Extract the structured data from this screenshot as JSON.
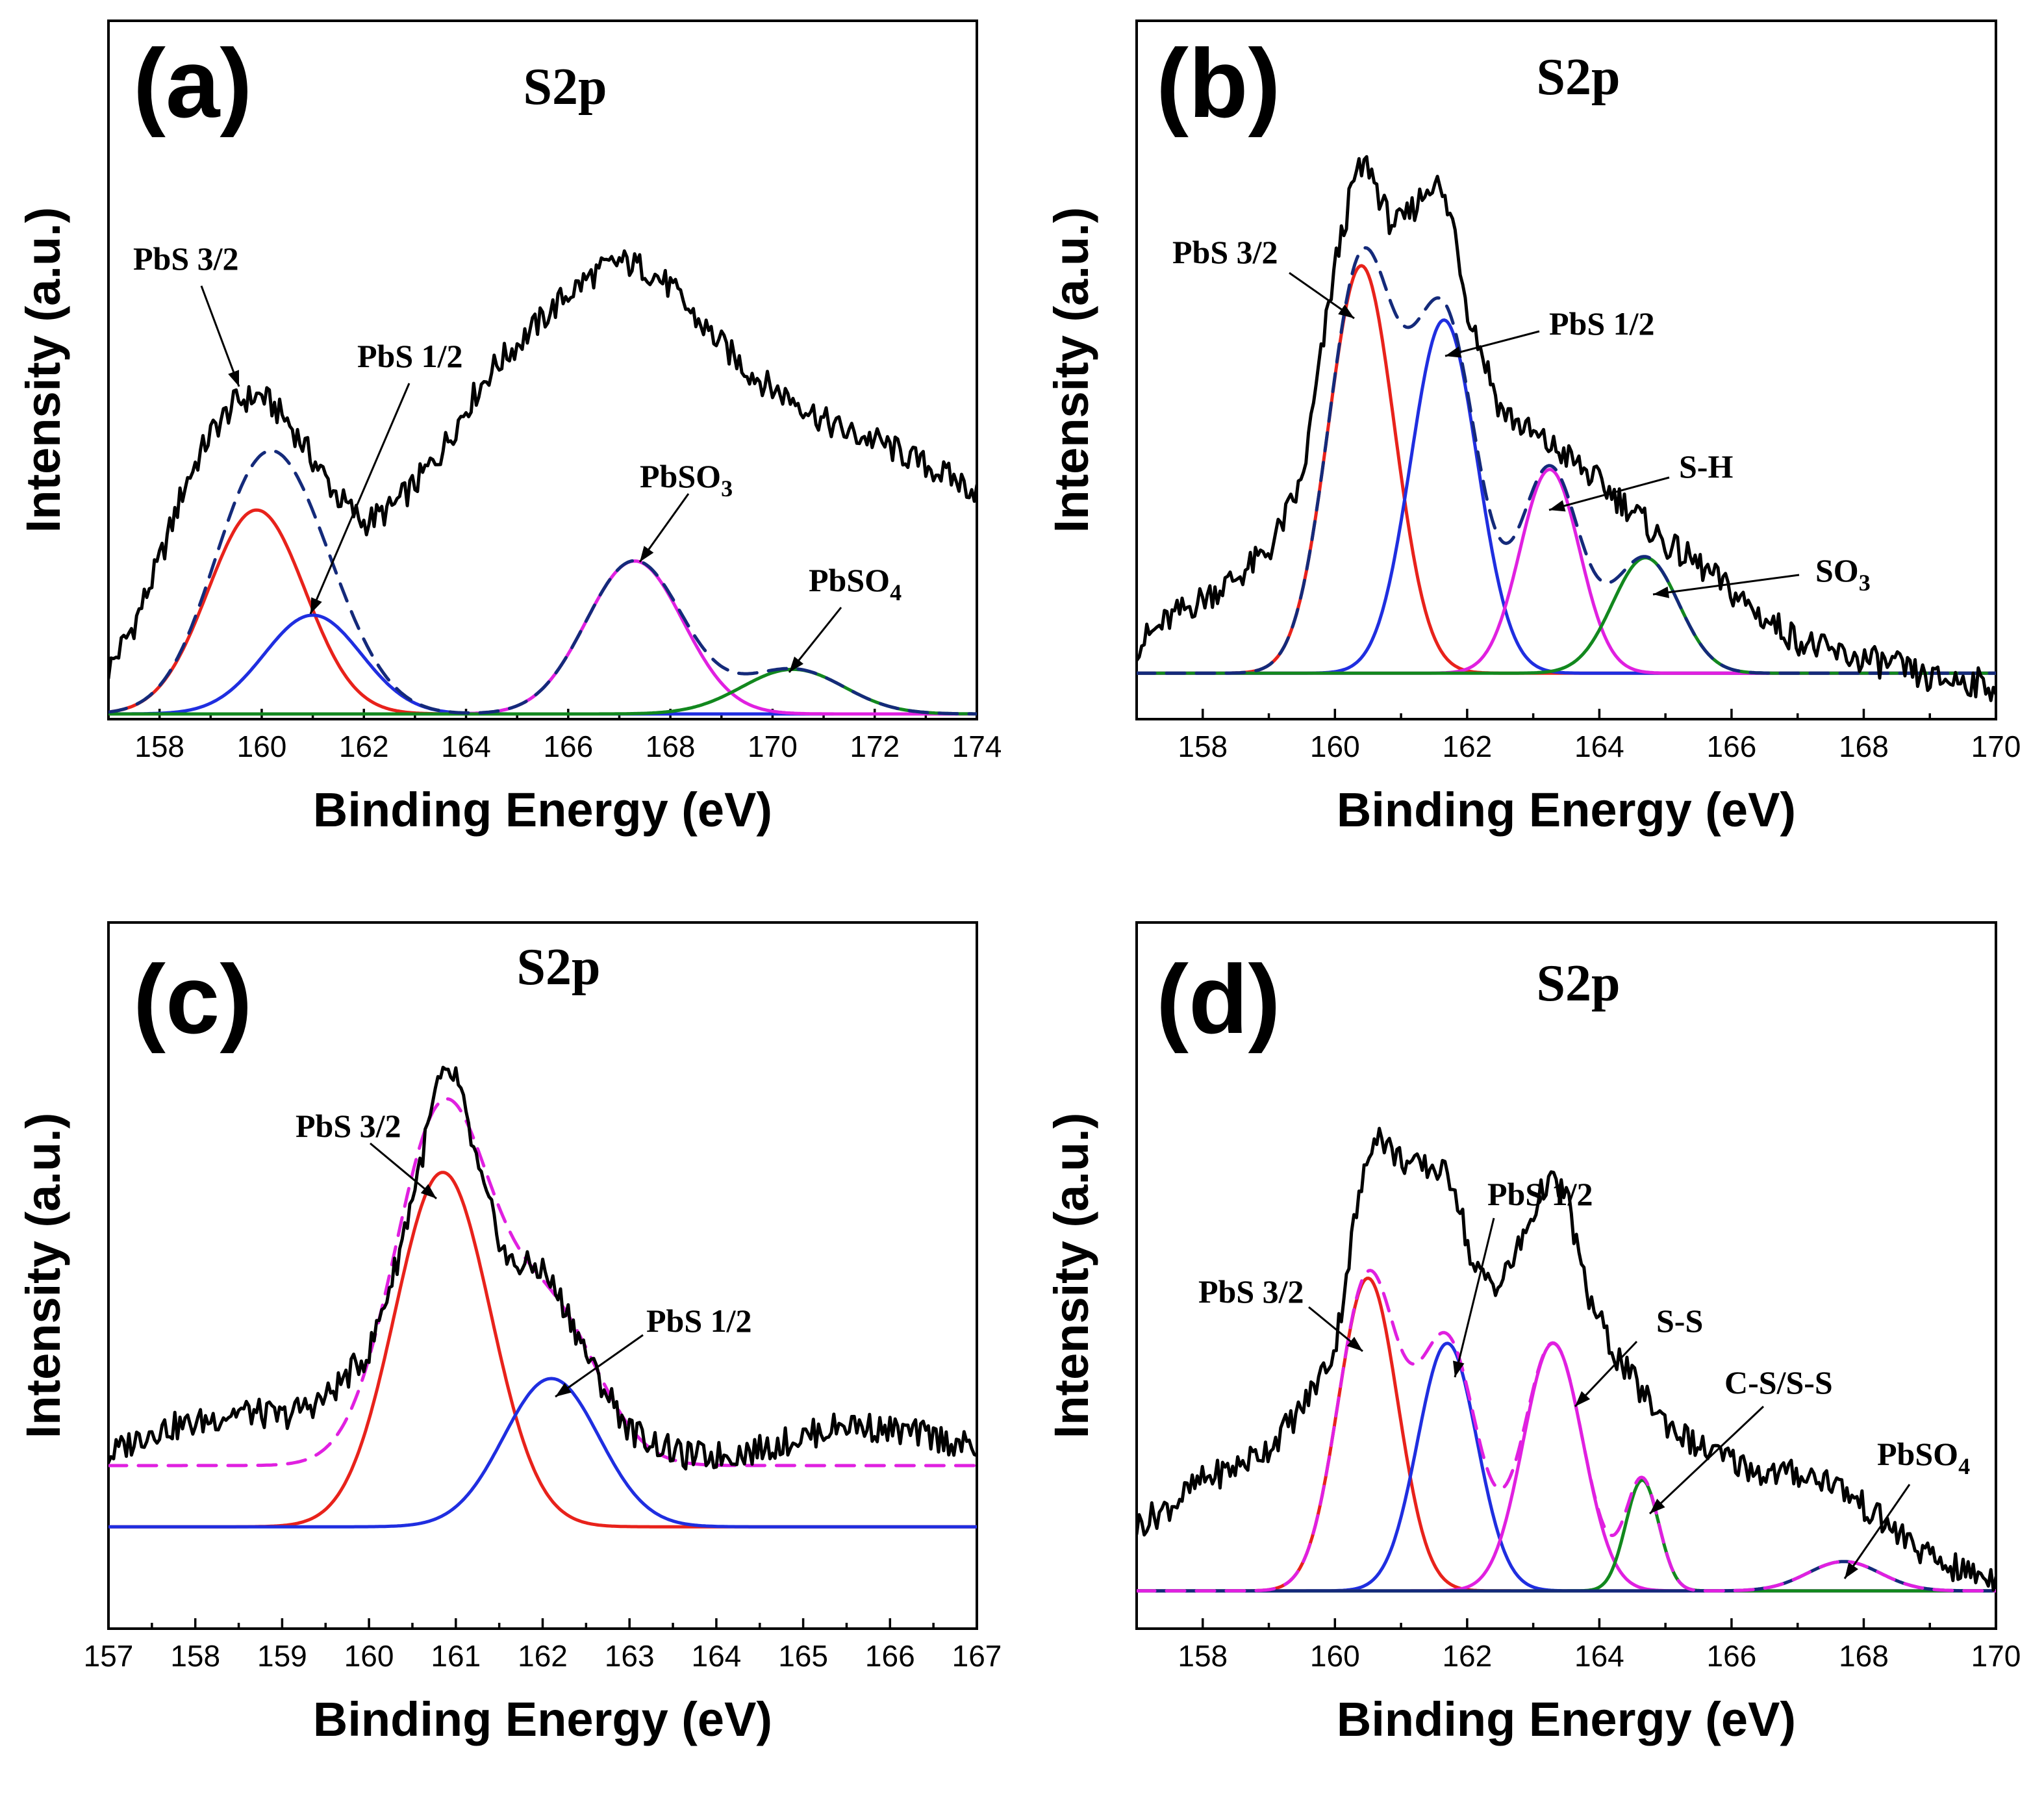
{
  "figure": "XPS S2p spectra",
  "chart_data": [
    {
      "type": "line",
      "panel_label": "(a)",
      "title": "S2p",
      "xlabel": "Binding Energy (eV)",
      "ylabel": "Intensity (a.u.)",
      "xlim": [
        157,
        174
      ],
      "ylim": [
        0,
        1
      ],
      "xticks": [
        "158",
        "160",
        "162",
        "164",
        "166",
        "168",
        "170",
        "172",
        "174"
      ],
      "baseline": 0.0,
      "raw": {
        "color": "#000000",
        "x": [
          157,
          157.5,
          158,
          158.5,
          159,
          159.5,
          160,
          160.5,
          161,
          161.5,
          162,
          162.5,
          163,
          163.5,
          164,
          164.5,
          165,
          165.5,
          166,
          166.5,
          167,
          167.5,
          168,
          168.5,
          169,
          169.5,
          170,
          170.5,
          171,
          171.5,
          172,
          172.5,
          173,
          173.5,
          174
        ],
        "y": [
          0.07,
          0.14,
          0.24,
          0.36,
          0.44,
          0.49,
          0.5,
          0.46,
          0.4,
          0.34,
          0.3,
          0.32,
          0.36,
          0.41,
          0.48,
          0.54,
          0.58,
          0.62,
          0.66,
          0.69,
          0.71,
          0.7,
          0.67,
          0.62,
          0.58,
          0.54,
          0.51,
          0.49,
          0.46,
          0.44,
          0.43,
          0.41,
          0.39,
          0.37,
          0.35
        ]
      },
      "peaks": [
        {
          "name": "PbS 3/2",
          "center": 159.9,
          "height": 0.32,
          "sigma": 0.95,
          "color": "#e8221b"
        },
        {
          "name": "PbS 1/2",
          "center": 161.0,
          "height": 0.155,
          "sigma": 0.95,
          "color": "#1f2ee0"
        },
        {
          "name": "PbSO3",
          "center": 167.3,
          "height": 0.24,
          "sigma": 0.95,
          "color": "#e020e0"
        },
        {
          "name": "PbSO4",
          "center": 170.4,
          "height": 0.07,
          "sigma": 1.0,
          "color": "#12881e"
        }
      ],
      "envelope": {
        "color": "#142a7a",
        "style": "dashed"
      },
      "annotations": [
        {
          "text": "PbS 3/2",
          "sub": ""
        },
        {
          "text": "PbS 1/2",
          "sub": ""
        },
        {
          "text": "PbSO",
          "sub": "3"
        },
        {
          "text": "PbSO",
          "sub": "4"
        }
      ]
    },
    {
      "type": "line",
      "panel_label": "(b)",
      "title": "S2p",
      "xlabel": "Binding Energy (eV)",
      "ylabel": "Intensity (a.u.)",
      "xlim": [
        157,
        170
      ],
      "ylim": [
        0,
        1
      ],
      "xticks": [
        "158",
        "160",
        "162",
        "164",
        "166",
        "168",
        "170"
      ],
      "baseline": 0.06,
      "raw": {
        "color": "#000000",
        "x": [
          157,
          157.5,
          158,
          158.5,
          159,
          159.5,
          160,
          160.3,
          160.5,
          160.8,
          161,
          161.3,
          161.5,
          161.8,
          162,
          162.5,
          163,
          163.5,
          164,
          164.5,
          165,
          165.5,
          166,
          166.5,
          167,
          167.5,
          168,
          168.5,
          169,
          169.5,
          170
        ],
        "y": [
          0.1,
          0.14,
          0.17,
          0.2,
          0.24,
          0.34,
          0.66,
          0.79,
          0.81,
          0.73,
          0.72,
          0.76,
          0.79,
          0.72,
          0.6,
          0.45,
          0.41,
          0.38,
          0.34,
          0.3,
          0.25,
          0.22,
          0.18,
          0.14,
          0.11,
          0.09,
          0.08,
          0.07,
          0.05,
          0.05,
          0.04
        ]
      },
      "peaks": [
        {
          "name": "PbS 3/2",
          "center": 160.4,
          "height": 0.6,
          "sigma": 0.5,
          "color": "#e8221b"
        },
        {
          "name": "PbS 1/2",
          "center": 161.65,
          "height": 0.52,
          "sigma": 0.5,
          "color": "#1f2ee0"
        },
        {
          "name": "S-H",
          "center": 163.25,
          "height": 0.3,
          "sigma": 0.45,
          "color": "#e020e0"
        },
        {
          "name": "SO3",
          "center": 164.7,
          "height": 0.17,
          "sigma": 0.5,
          "color": "#12881e"
        }
      ],
      "envelope": {
        "color": "#142a7a",
        "style": "dashed"
      },
      "annotations": [
        {
          "text": "PbS 3/2",
          "sub": ""
        },
        {
          "text": "PbS 1/2",
          "sub": ""
        },
        {
          "text": "S-H",
          "sub": ""
        },
        {
          "text": "SO",
          "sub": "3"
        }
      ]
    },
    {
      "type": "line",
      "panel_label": "(c)",
      "title": "S2p",
      "xlabel": "Binding Energy (eV)",
      "ylabel": "Intensity (a.u.)",
      "xlim": [
        157,
        167
      ],
      "ylim": [
        0,
        1
      ],
      "xticks": [
        "157",
        "158",
        "159",
        "160",
        "161",
        "162",
        "163",
        "164",
        "165",
        "166",
        "167"
      ],
      "baseline": 0.15,
      "envelope_offset": 0.095,
      "raw": {
        "color": "#000000",
        "x": [
          157,
          157.5,
          158,
          158.5,
          159,
          159.5,
          160,
          160.3,
          160.6,
          160.8,
          161,
          161.3,
          161.6,
          162,
          162.3,
          162.6,
          163,
          163.3,
          163.6,
          164,
          164.5,
          165,
          165.5,
          166,
          166.5,
          167
        ],
        "y": [
          0.26,
          0.3,
          0.31,
          0.33,
          0.32,
          0.35,
          0.42,
          0.55,
          0.72,
          0.84,
          0.85,
          0.68,
          0.56,
          0.55,
          0.48,
          0.39,
          0.3,
          0.28,
          0.26,
          0.26,
          0.27,
          0.29,
          0.31,
          0.3,
          0.29,
          0.27
        ]
      },
      "peaks": [
        {
          "name": "PbS 3/2",
          "center": 160.85,
          "height": 0.55,
          "sigma": 0.55,
          "color": "#e8221b"
        },
        {
          "name": "PbS 1/2",
          "center": 162.1,
          "height": 0.23,
          "sigma": 0.55,
          "color": "#1f2ee0"
        }
      ],
      "envelope": {
        "color": "#e020e0",
        "style": "dashed"
      },
      "annotations": [
        {
          "text": "PbS 3/2",
          "sub": ""
        },
        {
          "text": "PbS 1/2",
          "sub": ""
        }
      ]
    },
    {
      "type": "line",
      "panel_label": "(d)",
      "title": "S2p",
      "xlabel": "Binding Energy (eV)",
      "ylabel": "Intensity (a.u.)",
      "xlim": [
        157,
        170
      ],
      "ylim": [
        0,
        1
      ],
      "xticks": [
        "158",
        "160",
        "162",
        "164",
        "166",
        "168",
        "170"
      ],
      "baseline": 0.05,
      "raw": {
        "color": "#000000",
        "x": [
          157,
          157.5,
          158,
          158.5,
          159,
          159.5,
          160,
          160.3,
          160.6,
          160.9,
          161.2,
          161.5,
          161.8,
          162.1,
          162.5,
          162.8,
          163.2,
          163.5,
          163.8,
          164.2,
          164.6,
          165,
          165.5,
          166,
          166.5,
          167,
          167.5,
          168,
          168.5,
          169,
          169.5,
          170
        ],
        "y": [
          0.15,
          0.18,
          0.22,
          0.24,
          0.27,
          0.33,
          0.42,
          0.62,
          0.76,
          0.72,
          0.7,
          0.7,
          0.68,
          0.54,
          0.52,
          0.58,
          0.68,
          0.66,
          0.51,
          0.42,
          0.36,
          0.31,
          0.27,
          0.25,
          0.23,
          0.23,
          0.22,
          0.18,
          0.14,
          0.1,
          0.08,
          0.07
        ]
      },
      "peaks": [
        {
          "name": "PbS 3/2",
          "center": 160.5,
          "height": 0.48,
          "sigma": 0.45,
          "color": "#e8221b"
        },
        {
          "name": "PbS 1/2",
          "center": 161.7,
          "height": 0.38,
          "sigma": 0.45,
          "color": "#1f2ee0"
        },
        {
          "name": "S-S",
          "center": 163.3,
          "height": 0.38,
          "sigma": 0.45,
          "color": "#e020e0"
        },
        {
          "name": "C-S/S-S",
          "center": 164.65,
          "height": 0.17,
          "sigma": 0.25,
          "color": "#12881e"
        },
        {
          "name": "PbSO4",
          "center": 167.7,
          "height": 0.045,
          "sigma": 0.55,
          "color": "#142a7a"
        }
      ],
      "envelope": {
        "color": "#e020e0",
        "style": "dashed"
      },
      "annotations": [
        {
          "text": "PbS 3/2",
          "sub": ""
        },
        {
          "text": "PbS 1/2",
          "sub": ""
        },
        {
          "text": "S-S",
          "sub": ""
        },
        {
          "text": "C-S/S-S",
          "sub": ""
        },
        {
          "text": "PbSO",
          "sub": "4"
        }
      ]
    }
  ]
}
